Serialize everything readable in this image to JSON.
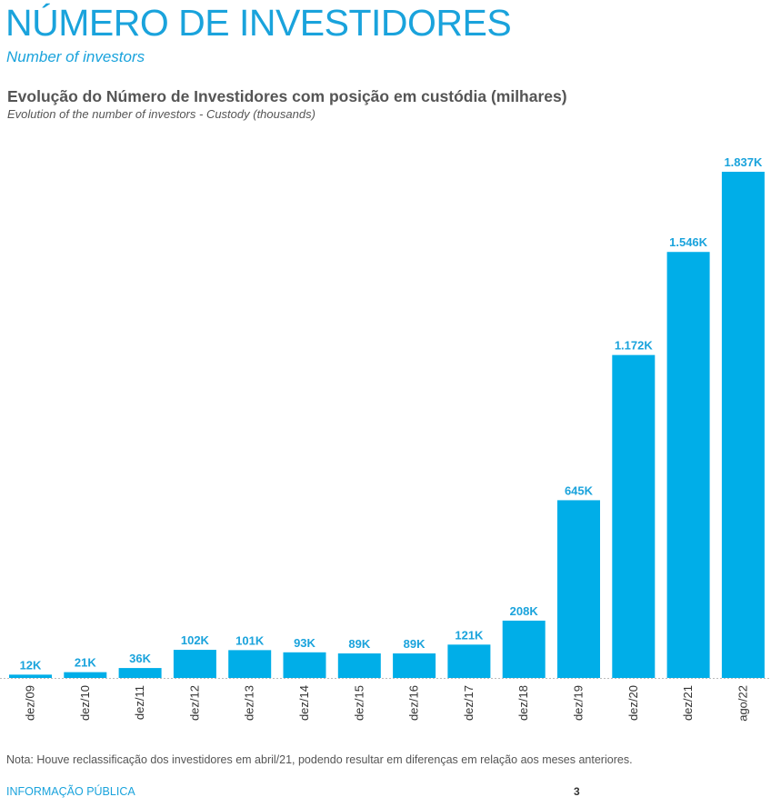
{
  "header": {
    "title": "NÚMERO DE INVESTIDORES",
    "subtitle": "Number of investors"
  },
  "chart_header": {
    "title": "Evolução do Número de Investidores com posição em custódia (milhares)",
    "subtitle": "Evolution of the number of investors - Custody (thousands)"
  },
  "chart_data": {
    "type": "bar",
    "title": "Evolução do Número de Investidores com posição em custódia (milhares)",
    "subtitle": "Evolution of the number of investors - Custody (thousands)",
    "xlabel": "",
    "ylabel": "",
    "categories": [
      "dez/09",
      "dez/10",
      "dez/11",
      "dez/12",
      "dez/13",
      "dez/14",
      "dez/15",
      "dez/16",
      "dez/17",
      "dez/18",
      "dez/19",
      "dez/20",
      "dez/21",
      "ago/22"
    ],
    "values": [
      12,
      21,
      36,
      102,
      101,
      93,
      89,
      89,
      121,
      208,
      645,
      1172,
      1546,
      1837
    ],
    "data_labels": [
      "12K",
      "21K",
      "36K",
      "102K",
      "101K",
      "93K",
      "89K",
      "89K",
      "121K",
      "208K",
      "645K",
      "1.172K",
      "1.546K",
      "1.837K"
    ],
    "ylim": [
      0,
      1837
    ],
    "grid": false,
    "legend": "none",
    "bar_color": "#00aee8",
    "label_color": "#1aa3dc"
  },
  "note": "Nota: Houve reclassificação dos investidores em abril/21, podendo resultar em diferenças em relação aos meses anteriores.",
  "footer": {
    "classification": "INFORMAÇÃO PÚBLICA",
    "page_number": "3"
  }
}
